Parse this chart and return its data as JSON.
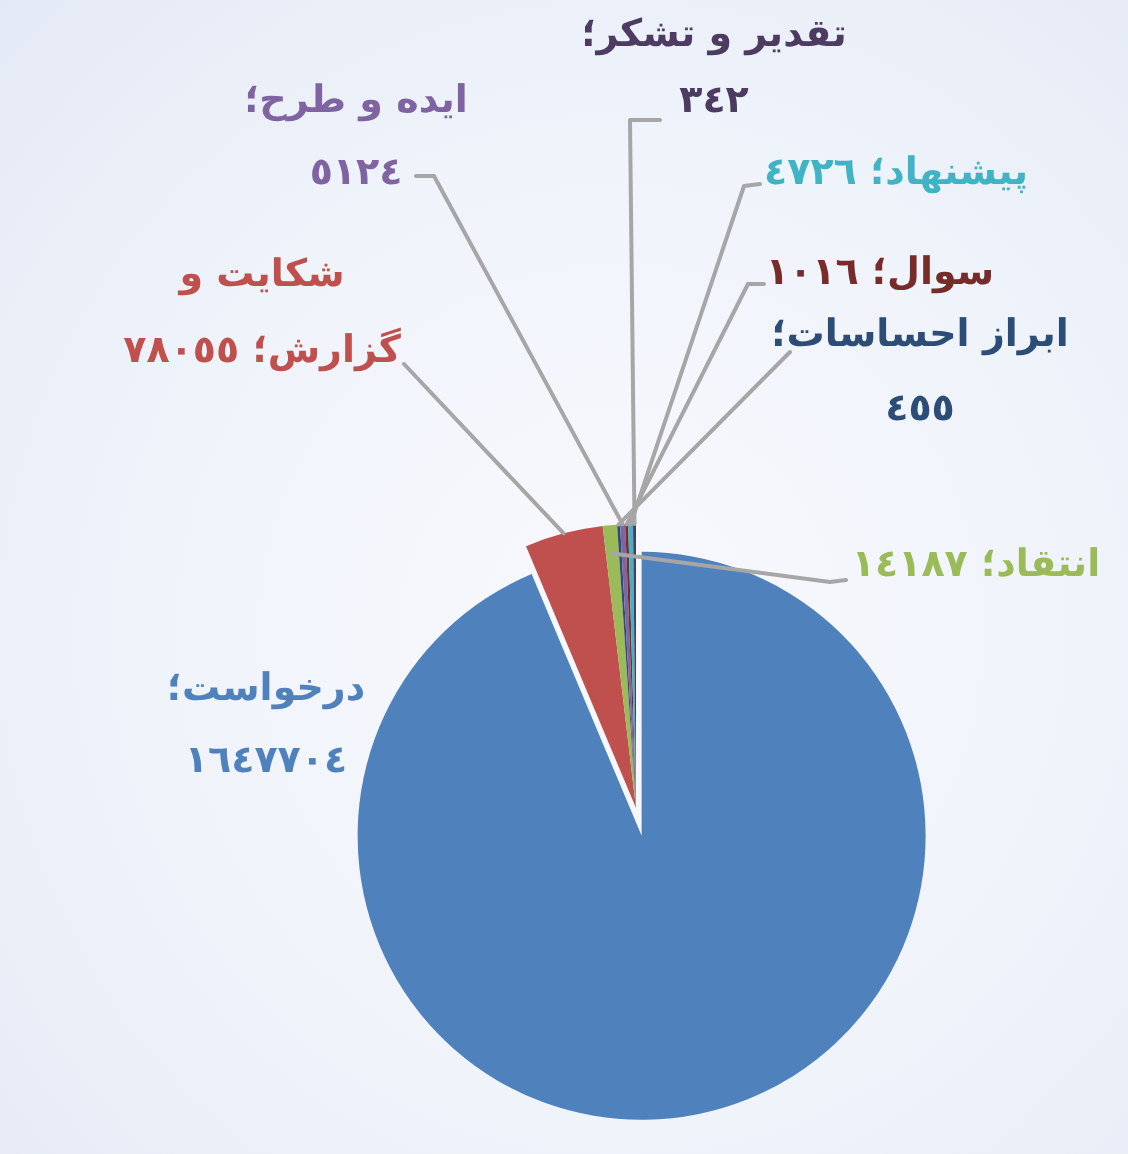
{
  "chart_data": {
    "type": "pie",
    "categories": [
      "درخواست؛",
      "شکایت و گزارش؛",
      "انتقاد؛",
      "ابراز احساسات؛",
      "ایده و طرح؛",
      "سوال؛",
      "پیشنهاد؛",
      "تقدیر و تشکر؛"
    ],
    "values": [
      1647704,
      78055,
      14187,
      455,
      5124,
      1016,
      4726,
      342
    ],
    "value_labels": [
      "١٦٤٧٧٠٤",
      "٧٨٠٥٥",
      "١٤١٨٧",
      "٤٥٥",
      "٥١٢٤",
      "١٠١٦",
      "٤٧٢٦",
      "٣٤٢"
    ],
    "colors": [
      "#4f81bd",
      "#c0504d",
      "#9bbb59",
      "#2c4d75",
      "#8064a2",
      "#772c2a",
      "#40b4c4",
      "#4d3b62"
    ]
  }
}
